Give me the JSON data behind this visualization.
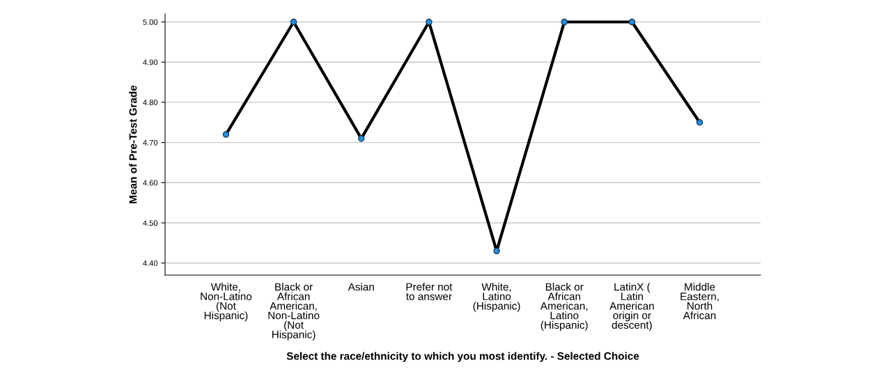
{
  "chart_data": {
    "type": "line",
    "xlabel": "Select the race/ethnicity to which you most identify. - Selected Choice",
    "ylabel": "Mean of Pre-Test Grade",
    "categories": [
      "White,\nNon-Latino\n(Not\nHispanic)",
      "Black or\nAfrican\nAmerican,\nNon-Latino\n(Not\nHispanic)",
      "Asian",
      "Prefer not\nto answer",
      "White,\nLatino\n(Hispanic)",
      "Black or\nAfrican\nAmerican,\nLatino\n(Hispanic)",
      "LatinX (\nLatin\nAmerican\norigin or\ndescent)",
      "Middle\nEastern,\nNorth\nAfrican"
    ],
    "series": [
      {
        "color": "#000000",
        "values": [
          4.72,
          5.0,
          4.71,
          5.0,
          4.43,
          5.0,
          5.0,
          4.75
        ]
      }
    ],
    "ylim": [
      4.37,
      5.02
    ],
    "yticks": [
      {
        "value": 4.4,
        "label": "4.40"
      },
      {
        "value": 4.5,
        "label": "4.50"
      },
      {
        "value": 4.6,
        "label": "4.60"
      },
      {
        "value": 4.7,
        "label": "4.70"
      },
      {
        "value": 4.8,
        "label": "4.80"
      },
      {
        "value": 4.9,
        "label": "4.90"
      },
      {
        "value": 5.0,
        "label": "5.00"
      }
    ],
    "grid": "y",
    "marker": "circle",
    "line_style": "solid"
  }
}
